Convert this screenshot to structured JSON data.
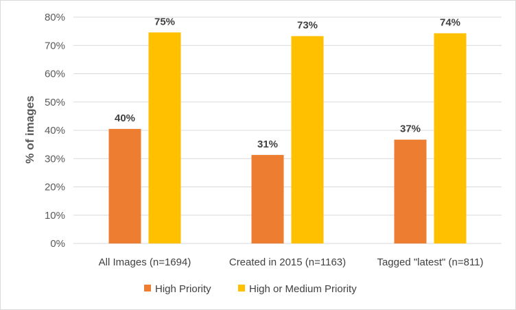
{
  "chart_data": {
    "type": "bar",
    "title": "",
    "xlabel": "",
    "ylabel": "% of images",
    "ylim": [
      0,
      80
    ],
    "y_ticks": [
      "0%",
      "10%",
      "20%",
      "30%",
      "40%",
      "50%",
      "60%",
      "70%",
      "80%"
    ],
    "y_tick_values": [
      0,
      10,
      20,
      30,
      40,
      50,
      60,
      70,
      80
    ],
    "grid": true,
    "legend_position": "bottom",
    "categories": [
      "All Images (n=1694)",
      "Created in 2015 (n=1163)",
      "Tagged \"latest\" (n=811)"
    ],
    "series": [
      {
        "name": "High Priority",
        "color": "#ed7d31",
        "values": [
          40.5,
          31.3,
          36.7
        ],
        "labels": [
          "40%",
          "31%",
          "37%"
        ]
      },
      {
        "name": "High or Medium Priority",
        "color": "#ffc000",
        "values": [
          74.6,
          73.3,
          74.3
        ],
        "labels": [
          "75%",
          "73%",
          "74%"
        ]
      }
    ]
  }
}
